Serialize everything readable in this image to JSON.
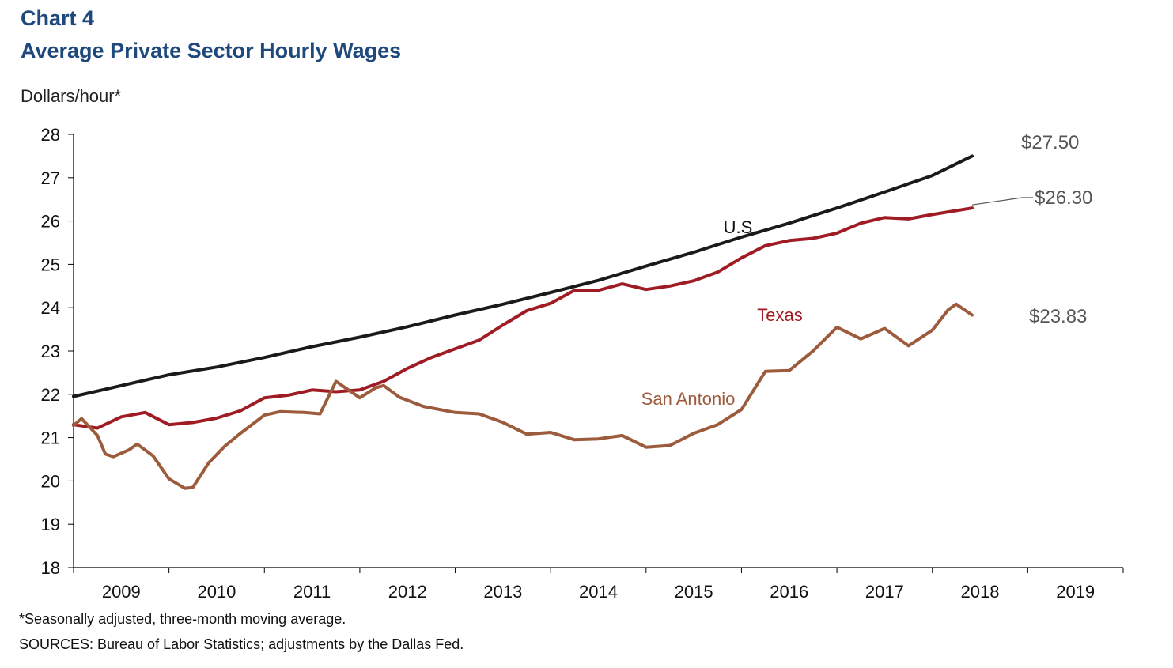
{
  "header": {
    "chart_number": "Chart 4",
    "title": "Average Private Sector Hourly Wages",
    "unit": "Dollars/hour*"
  },
  "footer": {
    "footnote": "*Seasonally adjusted, three-month moving average.",
    "source": "SOURCES: Bureau of Labor Statistics; adjustments by the Dallas Fed."
  },
  "colors": {
    "title": "#1f497d",
    "us": "#1a1a1a",
    "texas": "#a01c24",
    "san_antonio": "#9c5b3c",
    "axis": "#000000",
    "end_label": "#555555"
  },
  "chart_data": {
    "type": "line",
    "title": "Average Private Sector Hourly Wages",
    "ylabel": "Dollars/hour*",
    "ylim": [
      18,
      28
    ],
    "y_ticks": [
      "18",
      "19",
      "20",
      "21",
      "22",
      "23",
      "24",
      "25",
      "26",
      "27",
      "28"
    ],
    "x_range": [
      "2009-01",
      "2019-12"
    ],
    "x_ticks": [
      "2009",
      "2010",
      "2011",
      "2012",
      "2013",
      "2014",
      "2015",
      "2016",
      "2017",
      "2018",
      "2019"
    ],
    "grid": false,
    "legend": "inline labels",
    "series": [
      {
        "name": "U.S.",
        "key": "us",
        "points": [
          [
            "2009-01",
            21.95
          ],
          [
            "2009-07",
            22.2
          ],
          [
            "2010-01",
            22.45
          ],
          [
            "2010-07",
            22.63
          ],
          [
            "2011-01",
            22.85
          ],
          [
            "2011-07",
            23.1
          ],
          [
            "2012-01",
            23.32
          ],
          [
            "2012-07",
            23.56
          ],
          [
            "2013-01",
            23.83
          ],
          [
            "2013-07",
            24.08
          ],
          [
            "2014-01",
            24.35
          ],
          [
            "2014-07",
            24.63
          ],
          [
            "2015-01",
            24.96
          ],
          [
            "2015-07",
            25.28
          ],
          [
            "2016-01",
            25.63
          ],
          [
            "2016-07",
            25.95
          ],
          [
            "2017-01",
            26.3
          ],
          [
            "2017-07",
            26.67
          ],
          [
            "2018-01",
            27.05
          ],
          [
            "2018-06",
            27.5
          ]
        ]
      },
      {
        "name": "Texas",
        "key": "texas",
        "points": [
          [
            "2009-01",
            21.3
          ],
          [
            "2009-04",
            21.22
          ],
          [
            "2009-07",
            21.48
          ],
          [
            "2009-10",
            21.58
          ],
          [
            "2010-01",
            21.3
          ],
          [
            "2010-04",
            21.35
          ],
          [
            "2010-07",
            21.45
          ],
          [
            "2010-10",
            21.62
          ],
          [
            "2011-01",
            21.92
          ],
          [
            "2011-04",
            21.98
          ],
          [
            "2011-07",
            22.1
          ],
          [
            "2011-10",
            22.06
          ],
          [
            "2012-01",
            22.1
          ],
          [
            "2012-04",
            22.3
          ],
          [
            "2012-07",
            22.6
          ],
          [
            "2012-10",
            22.85
          ],
          [
            "2013-01",
            23.05
          ],
          [
            "2013-04",
            23.25
          ],
          [
            "2013-07",
            23.6
          ],
          [
            "2013-10",
            23.93
          ],
          [
            "2014-01",
            24.1
          ],
          [
            "2014-04",
            24.4
          ],
          [
            "2014-07",
            24.4
          ],
          [
            "2014-10",
            24.55
          ],
          [
            "2015-01",
            24.42
          ],
          [
            "2015-04",
            24.5
          ],
          [
            "2015-07",
            24.62
          ],
          [
            "2015-10",
            24.82
          ],
          [
            "2016-01",
            25.15
          ],
          [
            "2016-04",
            25.43
          ],
          [
            "2016-07",
            25.55
          ],
          [
            "2016-10",
            25.6
          ],
          [
            "2017-01",
            25.72
          ],
          [
            "2017-04",
            25.95
          ],
          [
            "2017-07",
            26.08
          ],
          [
            "2017-10",
            26.05
          ],
          [
            "2018-01",
            26.15
          ],
          [
            "2018-06",
            26.3
          ]
        ]
      },
      {
        "name": "San Antonio",
        "key": "san_antonio",
        "points": [
          [
            "2009-01",
            21.28
          ],
          [
            "2009-02",
            21.44
          ],
          [
            "2009-04",
            21.05
          ],
          [
            "2009-05",
            20.62
          ],
          [
            "2009-06",
            20.56
          ],
          [
            "2009-08",
            20.72
          ],
          [
            "2009-09",
            20.85
          ],
          [
            "2009-11",
            20.58
          ],
          [
            "2010-01",
            20.05
          ],
          [
            "2010-03",
            19.83
          ],
          [
            "2010-04",
            19.85
          ],
          [
            "2010-06",
            20.42
          ],
          [
            "2010-08",
            20.8
          ],
          [
            "2010-10",
            21.1
          ],
          [
            "2011-01",
            21.52
          ],
          [
            "2011-03",
            21.6
          ],
          [
            "2011-06",
            21.58
          ],
          [
            "2011-08",
            21.55
          ],
          [
            "2011-10",
            22.3
          ],
          [
            "2012-01",
            21.92
          ],
          [
            "2012-03",
            22.15
          ],
          [
            "2012-04",
            22.2
          ],
          [
            "2012-06",
            21.93
          ],
          [
            "2012-09",
            21.72
          ],
          [
            "2013-01",
            21.58
          ],
          [
            "2013-04",
            21.55
          ],
          [
            "2013-07",
            21.35
          ],
          [
            "2013-10",
            21.08
          ],
          [
            "2014-01",
            21.12
          ],
          [
            "2014-04",
            20.95
          ],
          [
            "2014-07",
            20.97
          ],
          [
            "2014-10",
            21.05
          ],
          [
            "2015-01",
            20.78
          ],
          [
            "2015-04",
            20.82
          ],
          [
            "2015-07",
            21.1
          ],
          [
            "2015-10",
            21.3
          ],
          [
            "2016-01",
            21.65
          ],
          [
            "2016-04",
            22.53
          ],
          [
            "2016-07",
            22.55
          ],
          [
            "2016-10",
            23.0
          ],
          [
            "2017-01",
            23.55
          ],
          [
            "2017-04",
            23.28
          ],
          [
            "2017-07",
            23.52
          ],
          [
            "2017-10",
            23.12
          ],
          [
            "2018-01",
            23.48
          ],
          [
            "2018-03",
            23.95
          ],
          [
            "2018-04",
            24.08
          ],
          [
            "2018-06",
            23.83
          ]
        ]
      }
    ],
    "annotations": [
      {
        "key": "us",
        "text": "U.S."
      },
      {
        "key": "texas",
        "text": "Texas"
      },
      {
        "key": "san_antonio",
        "text": "San Antonio"
      }
    ],
    "end_values": [
      {
        "key": "us",
        "text": "$27.50"
      },
      {
        "key": "texas",
        "text": "$26.30"
      },
      {
        "key": "san_antonio",
        "text": "$23.83"
      }
    ]
  }
}
